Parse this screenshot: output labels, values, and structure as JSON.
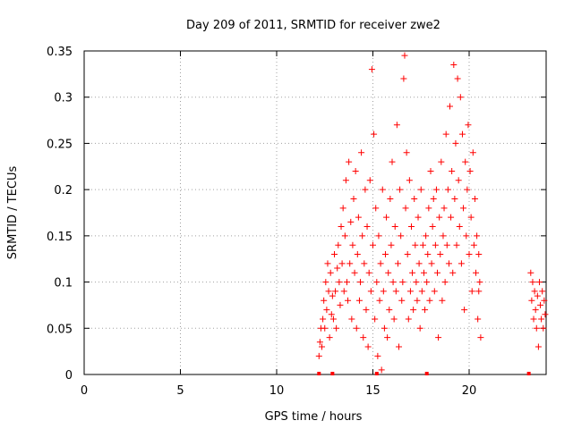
{
  "chart_data": {
    "type": "scatter",
    "title": "Day 209 of 2011, SRMTID for receiver zwe2",
    "xlabel": "GPS time / hours",
    "ylabel": "SRMTID / TECUs",
    "xlim": [
      0,
      24
    ],
    "ylim": [
      0,
      0.35
    ],
    "xticks": [
      0,
      5,
      10,
      15,
      20
    ],
    "xtick_labels": [
      "0",
      "5",
      "10",
      "15",
      "20"
    ],
    "yticks": [
      0,
      0.05,
      0.1,
      0.15,
      0.2,
      0.25,
      0.3,
      0.35
    ],
    "ytick_labels": [
      "0",
      "0.05",
      "0.1",
      "0.15",
      "0.2",
      "0.25",
      "0.3",
      "0.35"
    ],
    "grid": true,
    "marker": "+",
    "color": "#ff0000",
    "series": [
      {
        "name": "SRMTID",
        "points": [
          [
            12.2,
            0.02
          ],
          [
            12.25,
            0.035
          ],
          [
            12.3,
            0.05
          ],
          [
            12.35,
            0.03
          ],
          [
            12.4,
            0.06
          ],
          [
            12.45,
            0.08
          ],
          [
            12.5,
            0.05
          ],
          [
            12.55,
            0.1
          ],
          [
            12.6,
            0.07
          ],
          [
            12.65,
            0.12
          ],
          [
            12.7,
            0.09
          ],
          [
            12.75,
            0.04
          ],
          [
            12.8,
            0.11
          ],
          [
            12.85,
            0.065
          ],
          [
            12.9,
            0.085
          ],
          [
            12.95,
            0.06
          ],
          [
            13.0,
            0.13
          ],
          [
            13.05,
            0.09
          ],
          [
            13.1,
            0.05
          ],
          [
            13.15,
            0.115
          ],
          [
            13.2,
            0.14
          ],
          [
            13.25,
            0.1
          ],
          [
            13.3,
            0.075
          ],
          [
            13.35,
            0.16
          ],
          [
            13.4,
            0.12
          ],
          [
            13.45,
            0.18
          ],
          [
            13.5,
            0.09
          ],
          [
            13.55,
            0.15
          ],
          [
            13.6,
            0.21
          ],
          [
            13.65,
            0.1
          ],
          [
            13.7,
            0.08
          ],
          [
            13.75,
            0.23
          ],
          [
            13.8,
            0.12
          ],
          [
            13.85,
            0.165
          ],
          [
            13.9,
            0.06
          ],
          [
            13.95,
            0.14
          ],
          [
            14.0,
            0.19
          ],
          [
            14.05,
            0.11
          ],
          [
            14.1,
            0.22
          ],
          [
            14.15,
            0.05
          ],
          [
            14.2,
            0.13
          ],
          [
            14.25,
            0.17
          ],
          [
            14.3,
            0.08
          ],
          [
            14.35,
            0.1
          ],
          [
            14.4,
            0.24
          ],
          [
            14.45,
            0.15
          ],
          [
            14.5,
            0.04
          ],
          [
            14.55,
            0.12
          ],
          [
            14.6,
            0.2
          ],
          [
            14.65,
            0.07
          ],
          [
            14.7,
            0.16
          ],
          [
            14.75,
            0.03
          ],
          [
            14.8,
            0.11
          ],
          [
            14.85,
            0.21
          ],
          [
            14.9,
            0.09
          ],
          [
            14.95,
            0.33
          ],
          [
            15.0,
            0.14
          ],
          [
            15.05,
            0.26
          ],
          [
            15.1,
            0.06
          ],
          [
            15.15,
            0.18
          ],
          [
            15.2,
            0.1
          ],
          [
            15.25,
            0.02
          ],
          [
            15.3,
            0.15
          ],
          [
            15.35,
            0.08
          ],
          [
            15.4,
            0.12
          ],
          [
            15.45,
            0.005
          ],
          [
            15.5,
            0.2
          ],
          [
            15.55,
            0.09
          ],
          [
            15.6,
            0.05
          ],
          [
            15.65,
            0.13
          ],
          [
            15.7,
            0.17
          ],
          [
            15.75,
            0.04
          ],
          [
            15.8,
            0.11
          ],
          [
            15.85,
            0.07
          ],
          [
            15.9,
            0.19
          ],
          [
            15.95,
            0.14
          ],
          [
            16.0,
            0.23
          ],
          [
            16.05,
            0.1
          ],
          [
            16.1,
            0.06
          ],
          [
            16.15,
            0.16
          ],
          [
            16.2,
            0.09
          ],
          [
            16.25,
            0.27
          ],
          [
            16.3,
            0.12
          ],
          [
            16.35,
            0.03
          ],
          [
            16.4,
            0.2
          ],
          [
            16.45,
            0.15
          ],
          [
            16.5,
            0.08
          ],
          [
            16.55,
            0.1
          ],
          [
            16.6,
            0.32
          ],
          [
            16.65,
            0.345
          ],
          [
            16.7,
            0.18
          ],
          [
            16.75,
            0.24
          ],
          [
            16.8,
            0.13
          ],
          [
            16.85,
            0.06
          ],
          [
            16.9,
            0.21
          ],
          [
            16.95,
            0.09
          ],
          [
            17.0,
            0.16
          ],
          [
            17.05,
            0.11
          ],
          [
            17.1,
            0.07
          ],
          [
            17.15,
            0.19
          ],
          [
            17.2,
            0.14
          ],
          [
            17.25,
            0.1
          ],
          [
            17.3,
            0.08
          ],
          [
            17.35,
            0.17
          ],
          [
            17.4,
            0.12
          ],
          [
            17.45,
            0.05
          ],
          [
            17.5,
            0.2
          ],
          [
            17.55,
            0.09
          ],
          [
            17.6,
            0.14
          ],
          [
            17.65,
            0.11
          ],
          [
            17.7,
            0.07
          ],
          [
            17.75,
            0.15
          ],
          [
            17.8,
            0.1
          ],
          [
            17.85,
            0.13
          ],
          [
            17.9,
            0.18
          ],
          [
            17.95,
            0.08
          ],
          [
            18.0,
            0.22
          ],
          [
            18.05,
            0.12
          ],
          [
            18.1,
            0.16
          ],
          [
            18.15,
            0.19
          ],
          [
            18.2,
            0.09
          ],
          [
            18.25,
            0.14
          ],
          [
            18.3,
            0.2
          ],
          [
            18.35,
            0.11
          ],
          [
            18.4,
            0.04
          ],
          [
            18.45,
            0.17
          ],
          [
            18.5,
            0.13
          ],
          [
            18.55,
            0.23
          ],
          [
            18.6,
            0.08
          ],
          [
            18.65,
            0.15
          ],
          [
            18.7,
            0.18
          ],
          [
            18.75,
            0.1
          ],
          [
            18.8,
            0.26
          ],
          [
            18.85,
            0.14
          ],
          [
            18.9,
            0.2
          ],
          [
            18.95,
            0.12
          ],
          [
            19.0,
            0.29
          ],
          [
            19.05,
            0.17
          ],
          [
            19.1,
            0.22
          ],
          [
            19.15,
            0.11
          ],
          [
            19.2,
            0.335
          ],
          [
            19.25,
            0.19
          ],
          [
            19.3,
            0.25
          ],
          [
            19.35,
            0.14
          ],
          [
            19.4,
            0.32
          ],
          [
            19.45,
            0.21
          ],
          [
            19.5,
            0.16
          ],
          [
            19.55,
            0.3
          ],
          [
            19.6,
            0.12
          ],
          [
            19.65,
            0.26
          ],
          [
            19.7,
            0.18
          ],
          [
            19.75,
            0.07
          ],
          [
            19.8,
            0.23
          ],
          [
            19.85,
            0.15
          ],
          [
            19.9,
            0.2
          ],
          [
            19.95,
            0.27
          ],
          [
            20.0,
            0.13
          ],
          [
            20.05,
            0.22
          ],
          [
            20.1,
            0.17
          ],
          [
            20.15,
            0.09
          ],
          [
            20.2,
            0.24
          ],
          [
            20.25,
            0.14
          ],
          [
            20.3,
            0.19
          ],
          [
            20.35,
            0.11
          ],
          [
            20.4,
            0.15
          ],
          [
            20.45,
            0.06
          ],
          [
            20.5,
            0.13
          ],
          [
            20.55,
            0.1
          ],
          [
            20.6,
            0.04
          ],
          [
            20.5,
            0.09
          ],
          [
            23.2,
            0.11
          ],
          [
            23.25,
            0.08
          ],
          [
            23.3,
            0.1
          ],
          [
            23.35,
            0.06
          ],
          [
            23.4,
            0.09
          ],
          [
            23.45,
            0.07
          ],
          [
            23.5,
            0.05
          ],
          [
            23.55,
            0.085
          ],
          [
            23.6,
            0.03
          ],
          [
            23.65,
            0.1
          ],
          [
            23.7,
            0.075
          ],
          [
            23.75,
            0.06
          ],
          [
            23.8,
            0.09
          ],
          [
            23.85,
            0.05
          ],
          [
            23.9,
            0.08
          ],
          [
            23.95,
            0.065
          ]
        ]
      }
    ],
    "gap_markers_x": [
      12.2,
      12.9,
      15.2,
      17.8,
      23.1
    ]
  }
}
